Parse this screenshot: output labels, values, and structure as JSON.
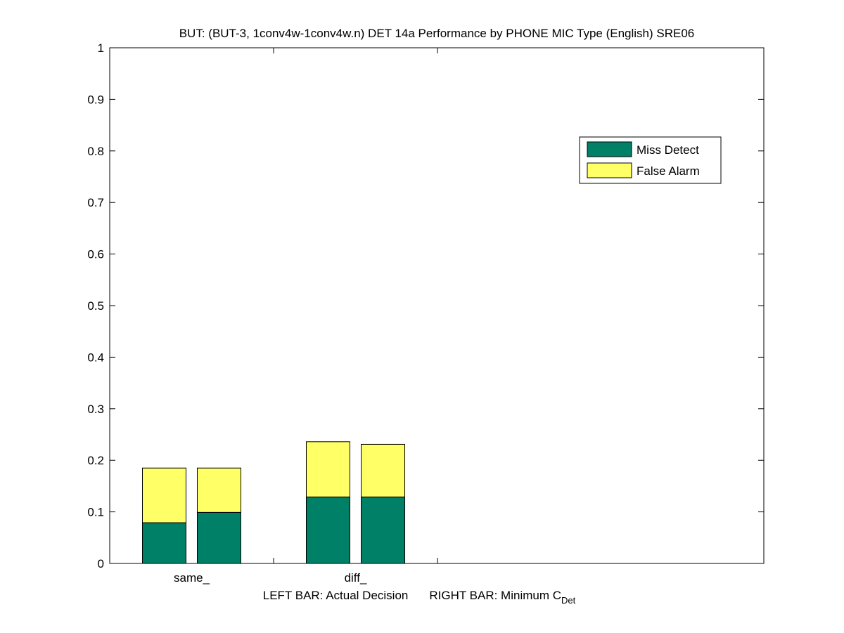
{
  "chart_data": {
    "type": "bar",
    "stacked": true,
    "title": "BUT: (BUT-3, 1conv4w-1conv4w.n) DET 14a Performance by PHONE MIC Type (English) SRE06",
    "xlabel": {
      "left": "LEFT BAR: Actual Decision",
      "right": "RIGHT BAR: Minimum C",
      "right_subscript": "Det"
    },
    "ylabel": "",
    "ylim": [
      0,
      1
    ],
    "yticks": [
      0,
      0.1,
      0.2,
      0.3,
      0.4,
      0.5,
      0.6,
      0.7,
      0.8,
      0.9,
      1
    ],
    "ytick_labels": [
      "0",
      "0.1",
      "0.2",
      "0.3",
      "0.4",
      "0.5",
      "0.6",
      "0.7",
      "0.8",
      "0.9",
      "1"
    ],
    "categories": [
      "same_",
      "diff_"
    ],
    "bar_roles": [
      "Actual Decision",
      "Minimum CDet"
    ],
    "series": [
      {
        "name": "Miss Detect",
        "color": "#008066",
        "values": [
          [
            0.079,
            0.099
          ],
          [
            0.129,
            0.129
          ]
        ]
      },
      {
        "name": "False Alarm",
        "color": "#ffff66",
        "values": [
          [
            0.106,
            0.086
          ],
          [
            0.107,
            0.102
          ]
        ]
      }
    ],
    "legend": {
      "position": "top-right",
      "entries": [
        "Miss Detect",
        "False Alarm"
      ]
    },
    "grid": false
  }
}
